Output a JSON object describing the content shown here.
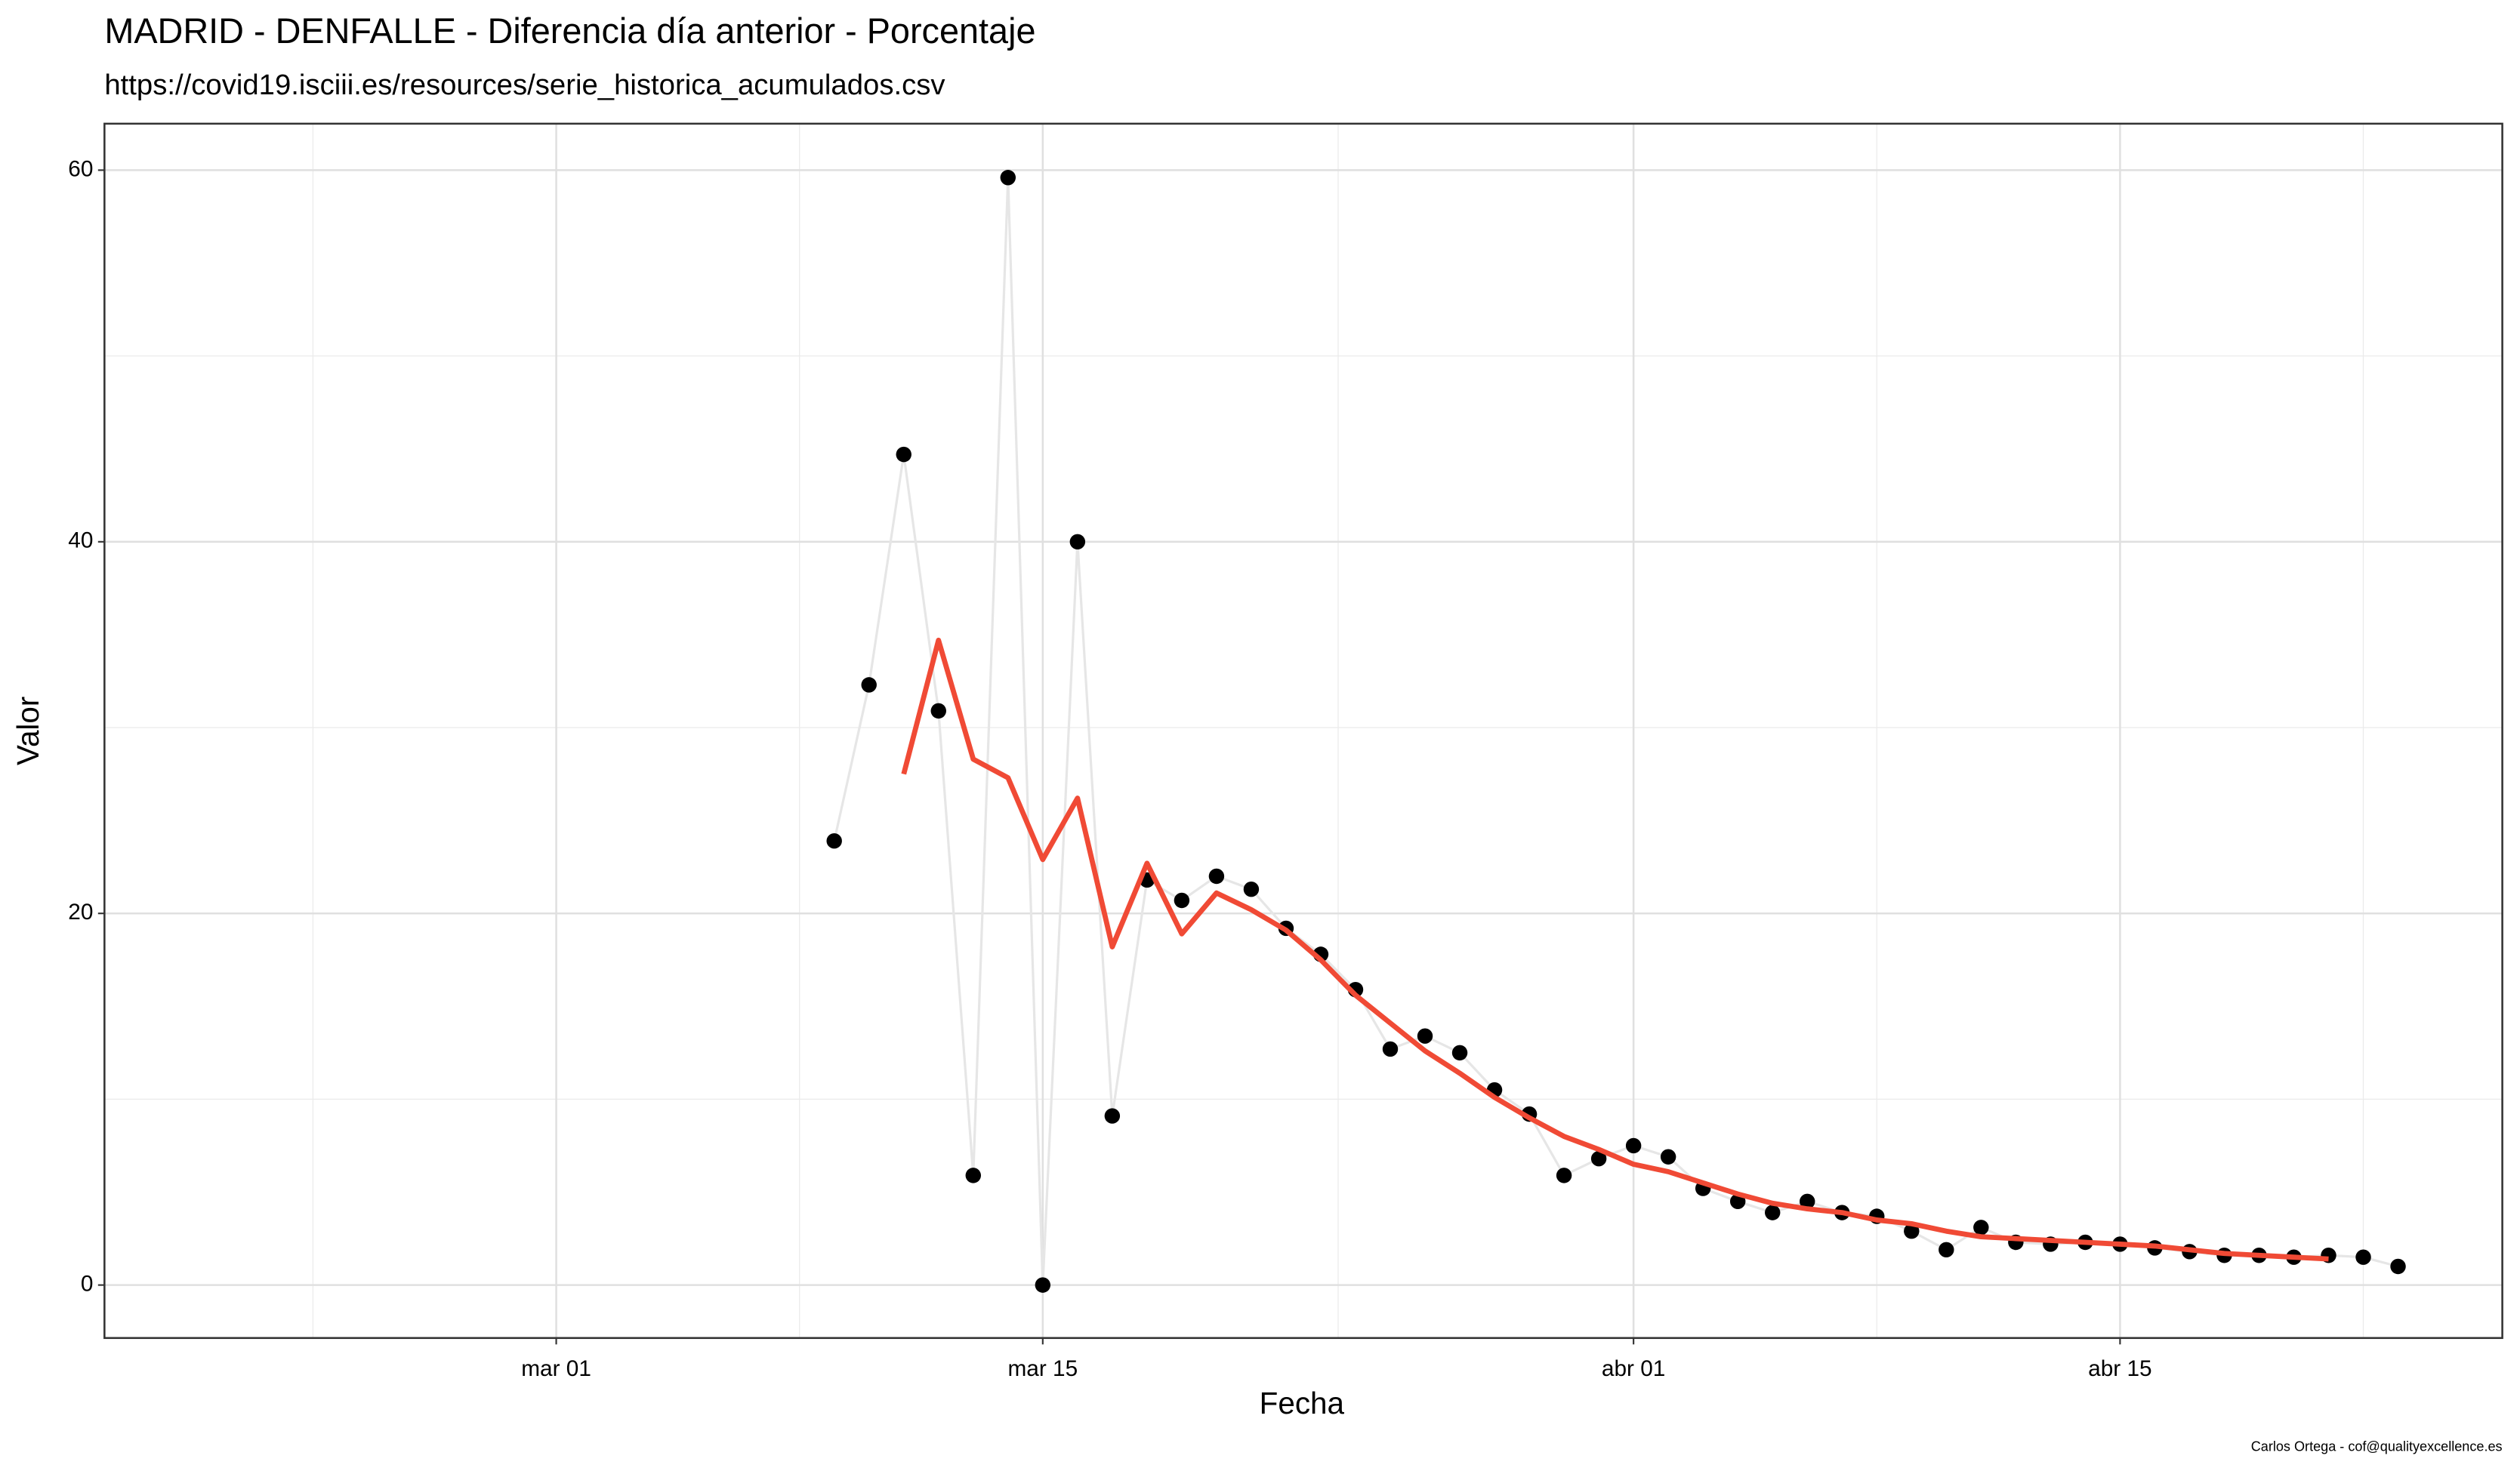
{
  "chart_data": {
    "type": "line",
    "title": "MADRID - DENFALLE - Diferencia día anterior - Porcentaje",
    "subtitle": "https://covid19.isciii.es/resources/serie_historica_acumulados.csv",
    "x_label": "Fecha",
    "y_label": "Valor",
    "caption": "Carlos Ortega - cof@qualityexcellence.es",
    "x": [
      "03-09",
      "03-10",
      "03-11",
      "03-12",
      "03-13",
      "03-14",
      "03-15",
      "03-16",
      "03-17",
      "03-18",
      "03-19",
      "03-20",
      "03-21",
      "03-22",
      "03-23",
      "03-24",
      "03-25",
      "03-26",
      "03-27",
      "03-28",
      "03-29",
      "03-30",
      "03-31",
      "04-01",
      "04-02",
      "04-03",
      "04-04",
      "04-05",
      "04-06",
      "04-07",
      "04-08",
      "04-09",
      "04-10",
      "04-11",
      "04-12",
      "04-13",
      "04-14",
      "04-15",
      "04-16",
      "04-17",
      "04-18",
      "04-19",
      "04-20",
      "04-21",
      "04-22",
      "04-23"
    ],
    "series": [
      {
        "color": "#000000",
        "line_color": "#e6e6e6",
        "values": [
          23.9,
          32.3,
          44.7,
          30.9,
          5.9,
          59.6,
          0,
          40.0,
          9.1,
          21.8,
          20.7,
          22.0,
          21.3,
          19.2,
          17.8,
          15.9,
          12.7,
          13.4,
          12.5,
          10.5,
          9.2,
          5.9,
          6.8,
          7.5,
          6.9,
          5.2,
          4.5,
          3.9,
          4.5,
          3.9,
          3.7,
          2.9,
          1.9,
          3.1,
          2.3,
          2.2,
          2.3,
          2.2,
          2.0,
          1.8,
          1.6,
          1.6,
          1.5,
          1.6,
          1.5,
          1.0
        ]
      },
      {
        "color": "#f04a35",
        "values": [
          null,
          null,
          27.5,
          34.7,
          28.3,
          27.3,
          22.9,
          26.2,
          18.2,
          22.7,
          18.9,
          21.1,
          20.2,
          19.1,
          17.5,
          15.6,
          14.1,
          12.6,
          11.4,
          10.1,
          9.0,
          8.0,
          7.3,
          6.5,
          6.1,
          5.5,
          4.9,
          4.4,
          4.1,
          3.9,
          3.5,
          3.3,
          2.9,
          2.6,
          2.5,
          2.4,
          2.3,
          2.2,
          2.1,
          1.9,
          1.7,
          1.6,
          1.5,
          1.4,
          null,
          null
        ]
      }
    ],
    "xlim": [
      "02-17",
      "04-26"
    ],
    "xticks": [
      {
        "value": "03-01",
        "label": "mar 01"
      },
      {
        "value": "03-15",
        "label": "mar 15"
      },
      {
        "value": "04-01",
        "label": "abr 01"
      },
      {
        "value": "04-15",
        "label": "abr 15"
      }
    ],
    "ylim": [
      -2.85,
      62.5
    ],
    "yticks": [
      0,
      20,
      40,
      60
    ],
    "grid": true
  }
}
